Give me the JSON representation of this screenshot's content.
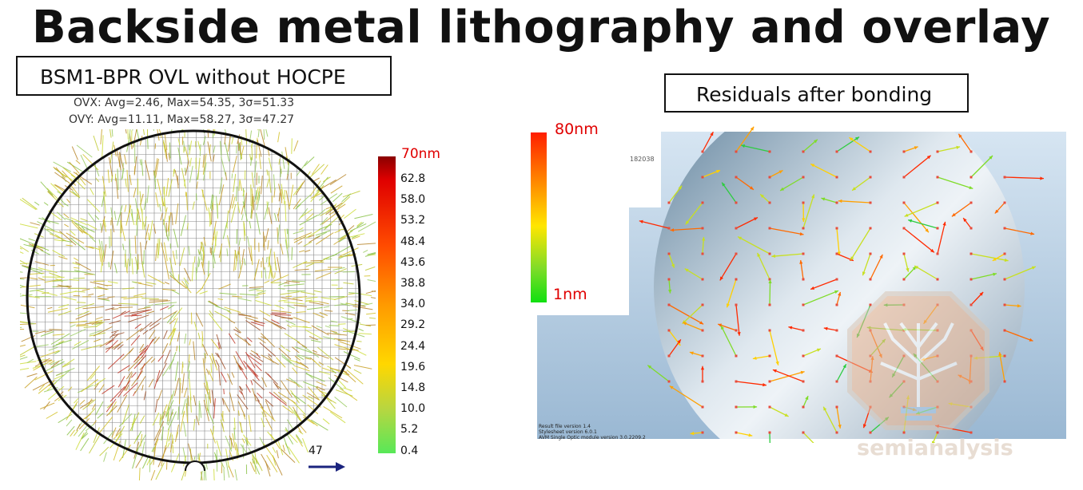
{
  "title": "Backside metal lithography and overlay",
  "left_panel": {
    "label": "BSM1-BPR OVL without HOCPE",
    "stats": {
      "ovx": "OVX: Avg=2.46, Max=54.35, 3σ=51.33",
      "ovy": "OVY: Avg=11.11, Max=58.27, 3σ=47.27"
    },
    "colorbar": {
      "max_label": "70nm",
      "ticks": [
        "62.8",
        "58.0",
        "53.2",
        "48.4",
        "43.6",
        "38.8",
        "34.0",
        "29.2",
        "24.4",
        "19.6",
        "14.8",
        "10.0",
        "5.2",
        "0.4"
      ]
    },
    "scale_value": "47"
  },
  "right_panel": {
    "label": "Residuals after bonding",
    "colorbar": {
      "max_label": "80nm",
      "min_label": "1nm"
    },
    "partial_id": "182038",
    "footer_lines": [
      "Result file version 1.4",
      "Stylesheet version 6.0.1",
      "AVM Single Optic module version 3.0.2209.2"
    ]
  },
  "watermark": "semianalysis",
  "colors": {
    "max_label": "#e00000",
    "arrow_scale": "#1a237e"
  },
  "icons": {
    "scale_arrow": "arrow-right-icon",
    "logo": "tree-circuit-logo"
  }
}
